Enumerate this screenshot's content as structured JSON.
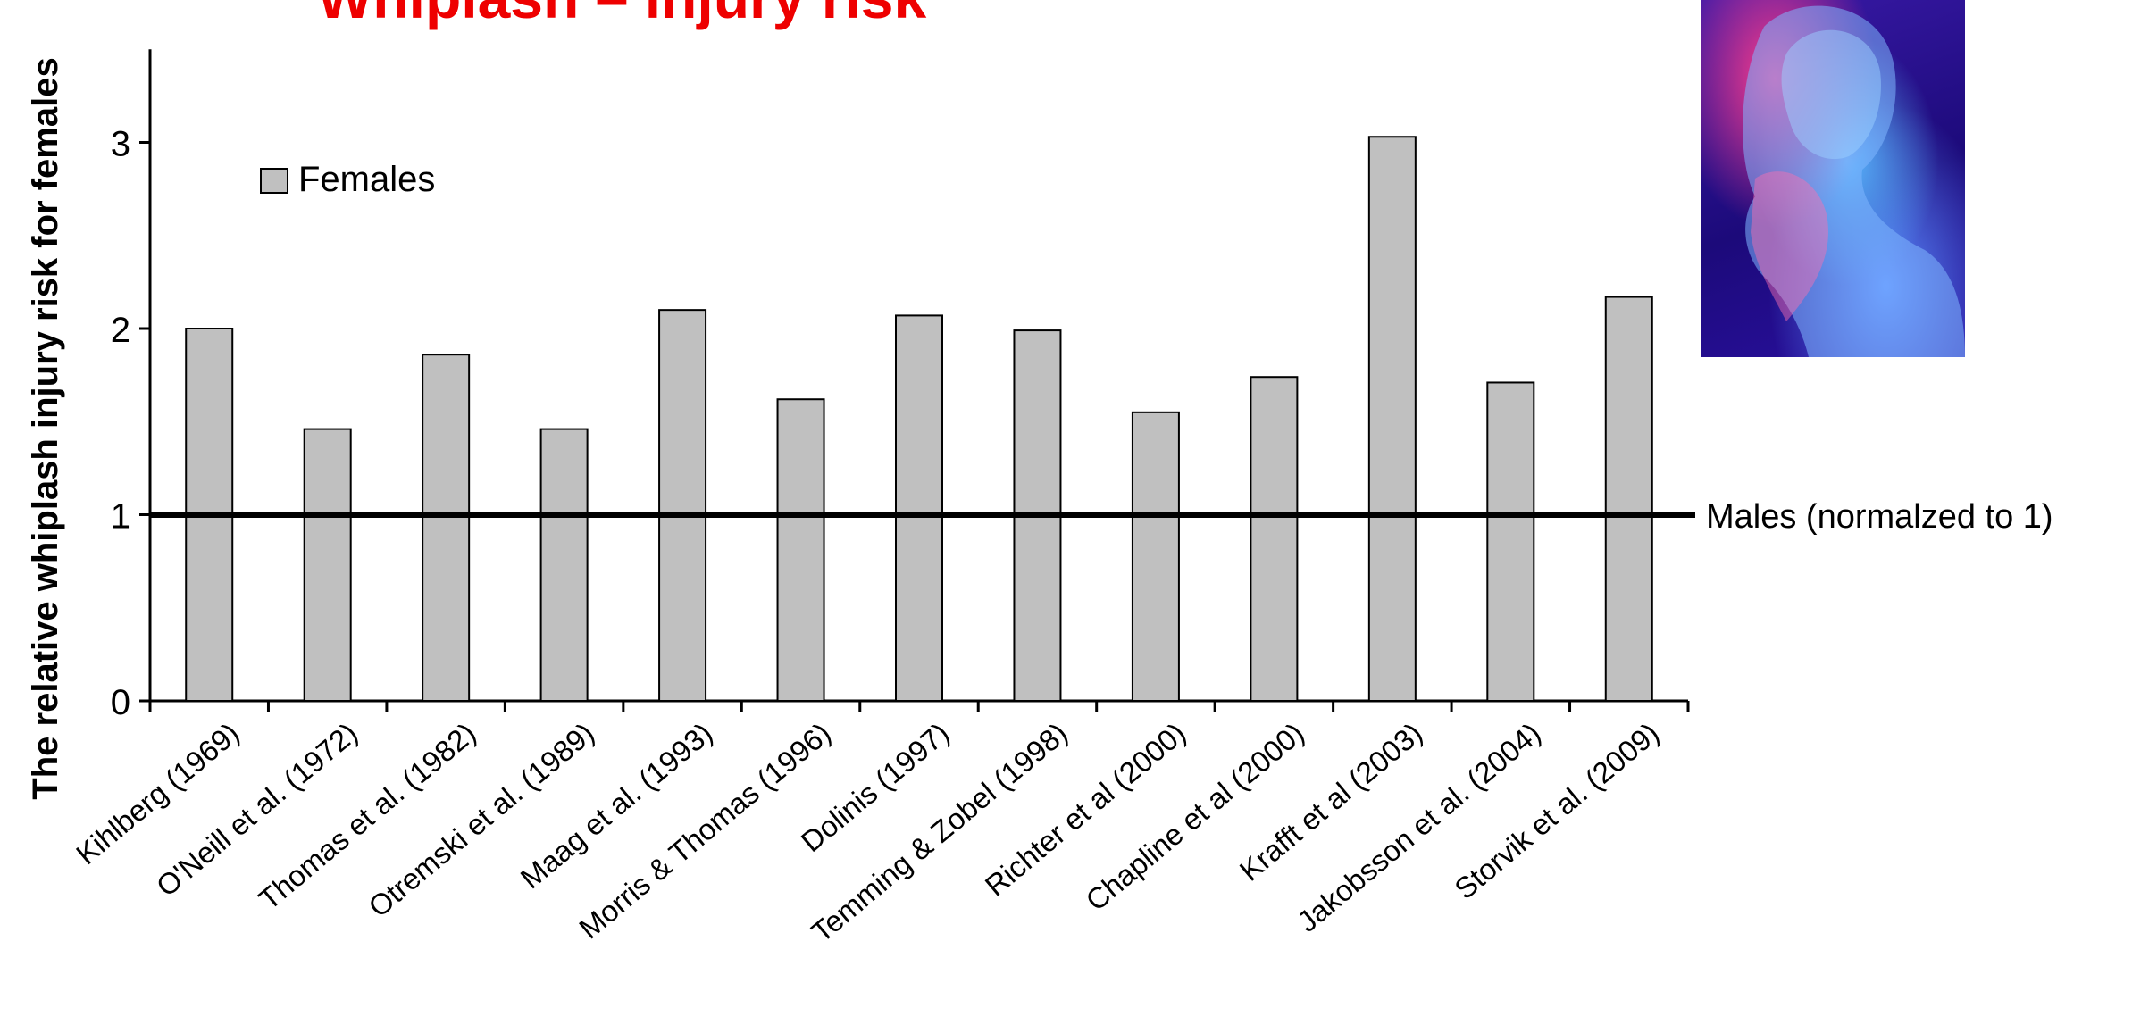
{
  "chart_data": {
    "type": "bar",
    "title": "Whiplash – injury risk",
    "ylabel": "The relative whiplash injury risk for females",
    "xlabel": "",
    "ylim": [
      0,
      3.5
    ],
    "yticks": [
      0,
      1,
      2,
      3
    ],
    "categories": [
      "Kihlberg (1969)",
      "O'Neill et al. (1972)",
      "Thomas et al. (1982)",
      "Otremski et al. (1989)",
      "Maag et al. (1993)",
      "Morris & Thomas (1996)",
      "Dolinis (1997)",
      "Temming & Zobel (1998)",
      "Richter et al (2000)",
      "Chapline et al (2000)",
      "Krafft et al (2003)",
      "Jakobsson et al. (2004)",
      "Storvik et al. (2009)"
    ],
    "series": [
      {
        "name": "Females",
        "color": "#c0c0c0",
        "values": [
          2.0,
          1.46,
          1.86,
          1.46,
          2.1,
          1.62,
          2.07,
          1.99,
          1.55,
          1.74,
          3.03,
          1.71,
          2.17
        ]
      }
    ],
    "reference_line": {
      "value": 1,
      "label": "Males (normalzed to 1)",
      "color": "#000000"
    },
    "legend_placement": "top-left",
    "grid": false
  },
  "image": {
    "name": "woman-neck-photo"
  }
}
